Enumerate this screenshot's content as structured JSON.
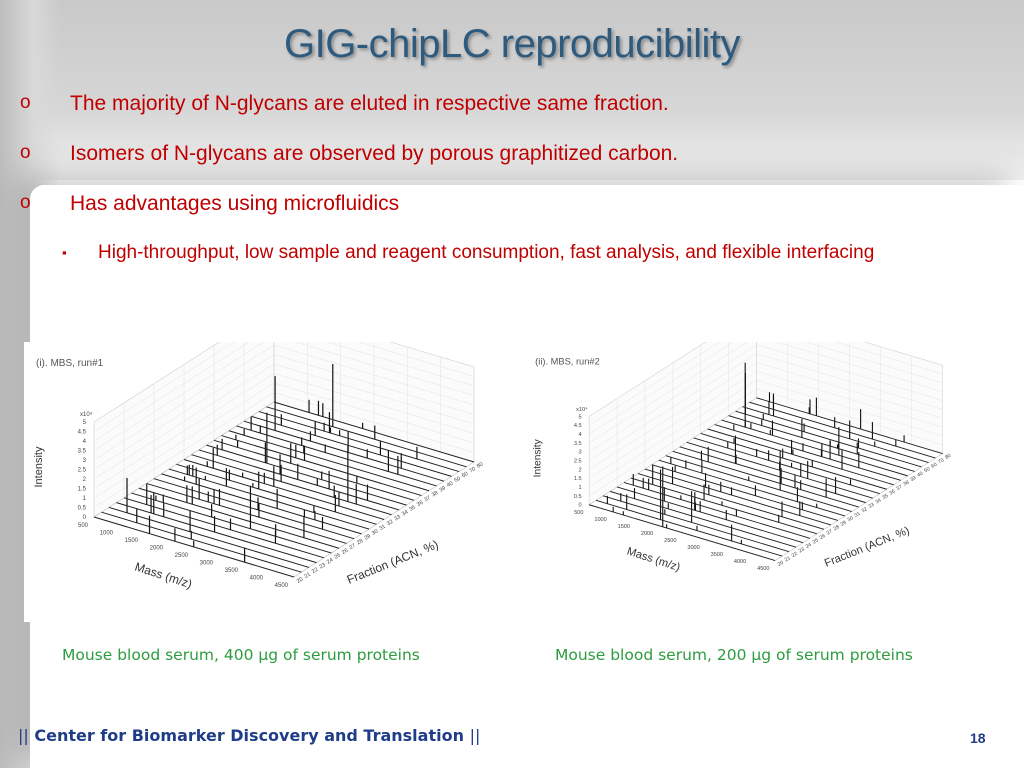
{
  "slide": {
    "title": "GIG-chipLC reproducibility",
    "bullets": [
      {
        "marker": "o",
        "text": "The majority of N-glycans are eluted in respective same fraction."
      },
      {
        "marker": "o",
        "text": "Isomers of N-glycans are observed by porous graphitized carbon."
      },
      {
        "marker": "o",
        "text": "Has advantages using microfluidics"
      }
    ],
    "sub_bullet": {
      "marker": "▪",
      "text": "High-throughput, low sample and reagent consumption, fast analysis, and flexible interfacing"
    },
    "captions": [
      "Mouse blood serum, 400 μg of serum proteins",
      "Mouse blood serum, 200 μg of serum proteins"
    ],
    "footer": {
      "bar_left": "||",
      "text": "Center for Biomarker Discovery and Translation",
      "bar_right": "||",
      "page": "18"
    }
  },
  "plots": [
    {
      "label": "(i). MBS, run#1",
      "scale": "x10⁴",
      "z_label": "Intensity",
      "z_ticks": [
        "0",
        "0.5",
        "1",
        "1.5",
        "2",
        "2.5",
        "3",
        "3.5",
        "4",
        "4.5",
        "5"
      ],
      "y_label": "Mass (m/z)",
      "y_ticks": [
        "500",
        "1000",
        "1500",
        "2000",
        "2500",
        "3000",
        "3500",
        "4000",
        "4500"
      ],
      "x_label": "Fraction (ACN, %)",
      "x_ticks": [
        "20",
        "21",
        "22",
        "23",
        "24",
        "25",
        "26",
        "27",
        "28",
        "29",
        "30",
        "31",
        "32",
        "33",
        "34",
        "35",
        "36",
        "37",
        "38",
        "39",
        "40",
        "50",
        "60",
        "70",
        "80"
      ]
    },
    {
      "label": "(ii). MBS, run#2",
      "scale": "x10⁴",
      "z_label": "Intensity",
      "z_ticks": [
        "0",
        "0.5",
        "1",
        "1.5",
        "2",
        "2.5",
        "3",
        "3.5",
        "4",
        "4.5",
        "5"
      ],
      "y_label": "Mass (m/z)",
      "y_ticks": [
        "500",
        "1000",
        "1500",
        "2000",
        "2500",
        "3000",
        "3500",
        "4000",
        "4500"
      ],
      "x_label": "Fraction (ACN, %)",
      "x_ticks": [
        "20",
        "21",
        "22",
        "23",
        "24",
        "25",
        "26",
        "27",
        "28",
        "29",
        "30",
        "31",
        "32",
        "33",
        "34",
        "35",
        "36",
        "37",
        "38",
        "39",
        "40",
        "50",
        "60",
        "70",
        "80"
      ]
    }
  ],
  "colors": {
    "title": "#2e5a7e",
    "bullet_text": "#c00000",
    "caption": "#2d9c3f",
    "footer": "#1f3c88"
  }
}
